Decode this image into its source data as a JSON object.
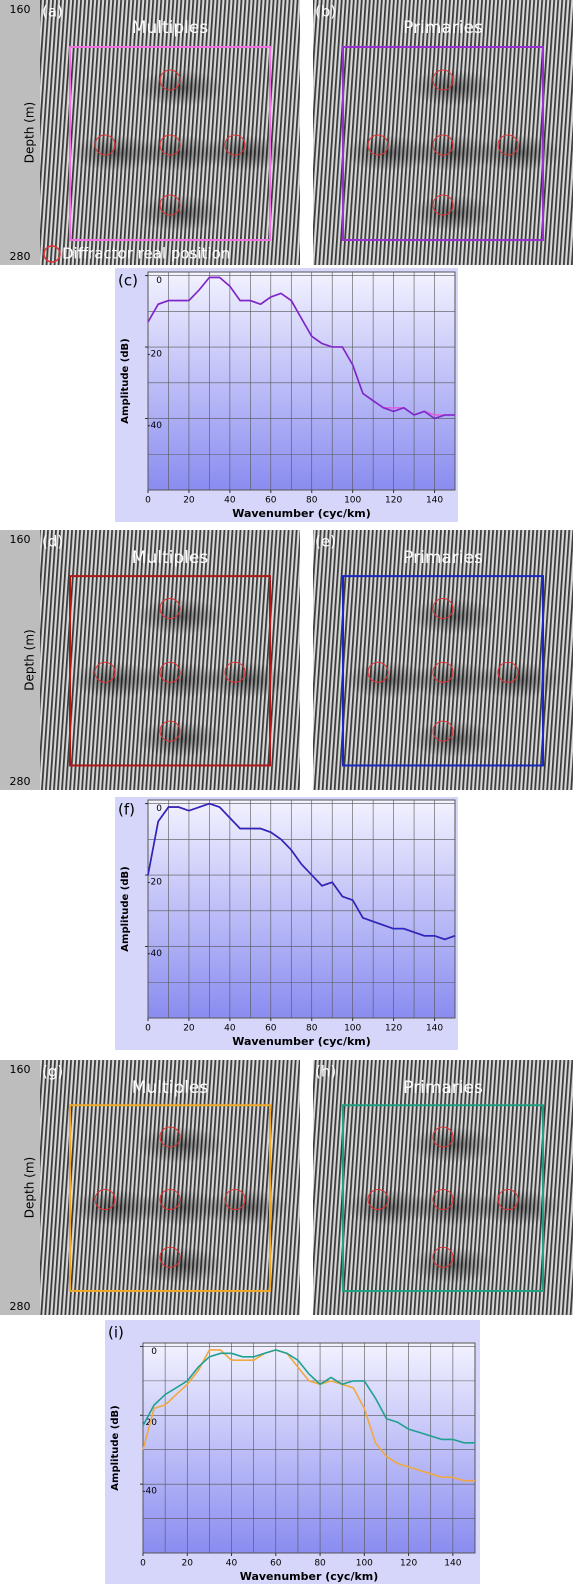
{
  "rows": [
    {
      "ylabel": "Depth (m)",
      "ytop": "160",
      "ybottom": "280",
      "legend": "Diffractor real position",
      "panels": [
        {
          "label": "(a)",
          "title": "Multiples",
          "box_color": "#f070e0"
        },
        {
          "label": "(b)",
          "title": "Primaries",
          "box_color": "#9a30d0"
        }
      ]
    },
    {
      "ylabel": "Depth (m)",
      "ytop": "160",
      "ybottom": "280",
      "panels": [
        {
          "label": "(d)",
          "title": "Multiples",
          "box_color": "#b01818"
        },
        {
          "label": "(e)",
          "title": "Primaries",
          "box_color": "#1828c0"
        }
      ]
    },
    {
      "ylabel": "Depth (m)",
      "ytop": "160",
      "ybottom": "280",
      "panels": [
        {
          "label": "(g)",
          "title": "Multiples",
          "box_color": "#f0a828"
        },
        {
          "label": "(h)",
          "title": "Primaries",
          "box_color": "#20a080"
        }
      ]
    }
  ],
  "chart_data": [
    {
      "type": "line",
      "label": "(c)",
      "xlabel": "Wavenumber (cyc/km)",
      "ylabel": "Amplitude (dB)",
      "xlim": [
        0,
        150
      ],
      "ylim": [
        -60,
        1
      ],
      "xticks": [
        0,
        20,
        40,
        60,
        80,
        100,
        120,
        140
      ],
      "yticks": [
        0,
        -20,
        -40
      ],
      "xgrid_step": 10,
      "ygrid_step": 10,
      "grid": true,
      "x": [
        0,
        5,
        10,
        15,
        20,
        25,
        30,
        35,
        40,
        45,
        50,
        55,
        60,
        65,
        70,
        75,
        80,
        85,
        90,
        95,
        100,
        105,
        110,
        115,
        120,
        125,
        130,
        135,
        140,
        145,
        150
      ],
      "series": [
        {
          "color": "#e060e0",
          "values": [
            -13,
            -8,
            -7,
            -7,
            -7,
            -4,
            -0.5,
            -0.5,
            -3,
            -7,
            -7,
            -8,
            -6,
            -5,
            -7,
            -12,
            -17,
            -19,
            -20,
            -20,
            -25,
            -33,
            -35,
            -37,
            -37,
            -37,
            -39,
            -38,
            -39,
            -39,
            -39
          ]
        },
        {
          "color": "#7a28c8",
          "values": [
            -13,
            -8,
            -7,
            -7,
            -7,
            -4,
            -0.5,
            -0.5,
            -3,
            -7,
            -7,
            -8,
            -6,
            -5,
            -7,
            -12,
            -17,
            -19,
            -20,
            -20,
            -25,
            -33,
            -35,
            -37,
            -38,
            -37,
            -39,
            -38,
            -40,
            -39,
            -39
          ]
        }
      ]
    },
    {
      "type": "line",
      "label": "(f)",
      "xlabel": "Wavenumber (cyc/km)",
      "ylabel": "Amplitude (dB)",
      "xlim": [
        0,
        150
      ],
      "ylim": [
        -60,
        1
      ],
      "xticks": [
        0,
        20,
        40,
        60,
        80,
        100,
        120,
        140
      ],
      "yticks": [
        0,
        -20,
        -40
      ],
      "xgrid_step": 10,
      "ygrid_step": 10,
      "grid": true,
      "x": [
        0,
        5,
        10,
        15,
        20,
        25,
        30,
        35,
        40,
        45,
        50,
        55,
        60,
        65,
        70,
        75,
        80,
        85,
        90,
        95,
        100,
        105,
        110,
        115,
        120,
        125,
        130,
        135,
        140,
        145,
        150
      ],
      "series": [
        {
          "color": "#c01010",
          "values": [
            -20,
            -5,
            -1,
            -1,
            -2,
            -1,
            0,
            -1,
            -4,
            -7,
            -7,
            -7,
            -8,
            -10,
            -13,
            -17,
            -20,
            -23,
            -22,
            -26,
            -27,
            -32,
            -33,
            -34,
            -35,
            -35,
            -36,
            -37,
            -37,
            -38,
            -37
          ]
        },
        {
          "color": "#2828c8",
          "values": [
            -20,
            -5,
            -1,
            -1,
            -2,
            -1,
            0,
            -1,
            -4,
            -7,
            -7,
            -7,
            -8,
            -10,
            -13,
            -17,
            -20,
            -23,
            -22,
            -26,
            -27,
            -32,
            -33,
            -34,
            -35,
            -35,
            -36,
            -37,
            -37,
            -38,
            -37
          ]
        }
      ]
    },
    {
      "type": "line",
      "label": "(i)",
      "xlabel": "Wavenumber (cyc/km)",
      "ylabel": "Amplitude (dB)",
      "xlim": [
        0,
        150
      ],
      "ylim": [
        -60,
        1
      ],
      "xticks": [
        0,
        20,
        40,
        60,
        80,
        100,
        120,
        140
      ],
      "yticks": [
        0,
        -20,
        -40
      ],
      "xgrid_step": 10,
      "ygrid_step": 10,
      "grid": true,
      "x": [
        0,
        5,
        10,
        15,
        20,
        25,
        30,
        35,
        40,
        45,
        50,
        55,
        60,
        65,
        70,
        75,
        80,
        85,
        90,
        95,
        100,
        105,
        110,
        115,
        120,
        125,
        130,
        135,
        140,
        145,
        150
      ],
      "series": [
        {
          "color": "#f0a840",
          "values": [
            -30,
            -18,
            -17,
            -14,
            -11,
            -7,
            -1,
            -1,
            -4,
            -4,
            -4,
            -2,
            -1,
            -2,
            -6,
            -10,
            -11,
            -10,
            -11,
            -12,
            -18,
            -28,
            -32,
            -34,
            -35,
            -36,
            -37,
            -38,
            -38,
            -39,
            -39
          ]
        },
        {
          "color": "#20a090",
          "values": [
            -23,
            -17,
            -14,
            -12,
            -10,
            -6,
            -3,
            -2,
            -2,
            -3,
            -3,
            -2,
            -1,
            -2,
            -4,
            -8,
            -11,
            -9,
            -11,
            -10,
            -10,
            -15,
            -21,
            -22,
            -24,
            -25,
            -26,
            -27,
            -27,
            -28,
            -28
          ]
        }
      ]
    }
  ]
}
